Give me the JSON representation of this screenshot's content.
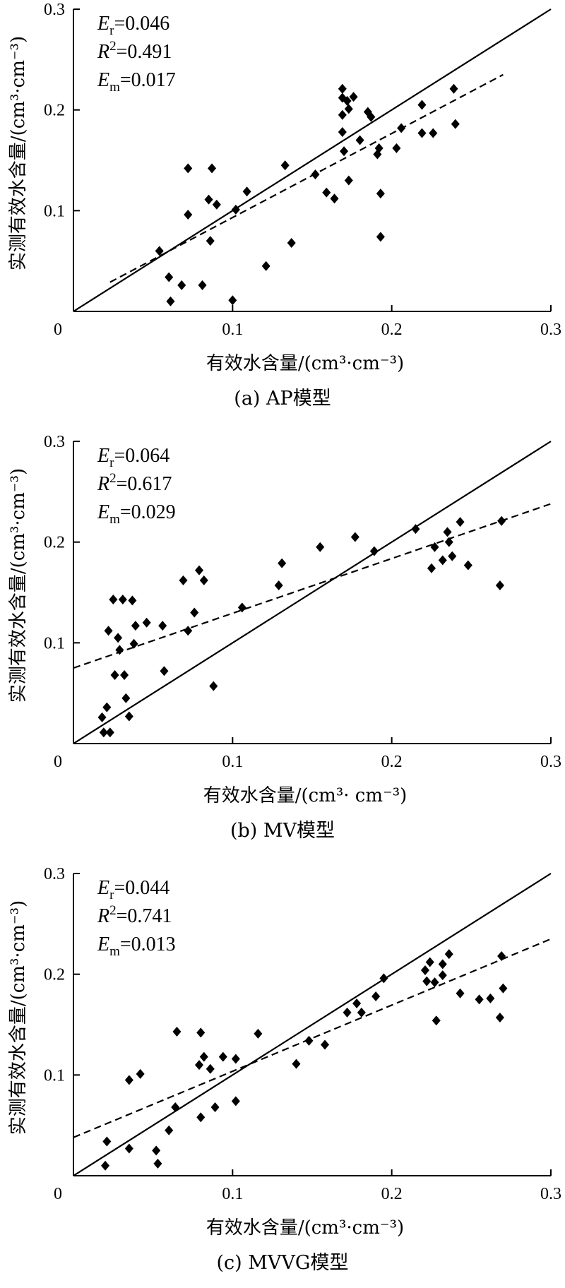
{
  "chart_data": [
    {
      "type": "scatter",
      "caption": "(a)  AP模型",
      "xlabel": "有效水含量/(cm³·cm⁻³)",
      "ylabel": "实测有效水含量/(cm³·cm⁻³)",
      "xlim": [
        0,
        0.3
      ],
      "ylim": [
        0,
        0.3
      ],
      "xticks": [
        "0",
        "0.1",
        "0.2",
        "0.3"
      ],
      "yticks": [
        "0.1",
        "0.2",
        "0.3"
      ],
      "stats": [
        {
          "sym": "E",
          "sub": "r",
          "sup": "",
          "value": "=0.046"
        },
        {
          "sym": "R",
          "sub": "",
          "sup": "2",
          "value": "=0.491"
        },
        {
          "sym": "E",
          "sub": "m",
          "sup": "",
          "value": "=0.017"
        }
      ],
      "identity_line": [
        [
          0,
          0
        ],
        [
          0.3,
          0.3
        ]
      ],
      "fit_line": [
        [
          0.023,
          0.029
        ],
        [
          0.27,
          0.235
        ]
      ],
      "points": [
        [
          0.054,
          0.06
        ],
        [
          0.06,
          0.034
        ],
        [
          0.061,
          0.01
        ],
        [
          0.068,
          0.026
        ],
        [
          0.072,
          0.096
        ],
        [
          0.072,
          0.142
        ],
        [
          0.081,
          0.026
        ],
        [
          0.085,
          0.111
        ],
        [
          0.086,
          0.07
        ],
        [
          0.087,
          0.142
        ],
        [
          0.09,
          0.106
        ],
        [
          0.1,
          0.011
        ],
        [
          0.102,
          0.101
        ],
        [
          0.109,
          0.119
        ],
        [
          0.121,
          0.045
        ],
        [
          0.133,
          0.145
        ],
        [
          0.137,
          0.068
        ],
        [
          0.152,
          0.136
        ],
        [
          0.159,
          0.118
        ],
        [
          0.164,
          0.112
        ],
        [
          0.169,
          0.221
        ],
        [
          0.169,
          0.212
        ],
        [
          0.169,
          0.195
        ],
        [
          0.169,
          0.178
        ],
        [
          0.17,
          0.159
        ],
        [
          0.172,
          0.209
        ],
        [
          0.173,
          0.201
        ],
        [
          0.173,
          0.13
        ],
        [
          0.176,
          0.213
        ],
        [
          0.18,
          0.17
        ],
        [
          0.185,
          0.198
        ],
        [
          0.187,
          0.193
        ],
        [
          0.191,
          0.156
        ],
        [
          0.192,
          0.162
        ],
        [
          0.193,
          0.117
        ],
        [
          0.193,
          0.074
        ],
        [
          0.203,
          0.162
        ],
        [
          0.206,
          0.182
        ],
        [
          0.219,
          0.205
        ],
        [
          0.219,
          0.177
        ],
        [
          0.226,
          0.177
        ],
        [
          0.239,
          0.221
        ],
        [
          0.24,
          0.186
        ]
      ]
    },
    {
      "type": "scatter",
      "caption": "(b)  MV模型",
      "xlabel": "有效水含量/(cm³· cm⁻³)",
      "ylabel": "实测有效水含量/(cm³·cm⁻³)",
      "xlim": [
        0,
        0.3
      ],
      "ylim": [
        0,
        0.3
      ],
      "xticks": [
        "0",
        "0.1",
        "0.2",
        "0.3"
      ],
      "yticks": [
        "0.1",
        "0.2",
        "0.3"
      ],
      "stats": [
        {
          "sym": "E",
          "sub": "r",
          "sup": "",
          "value": "=0.064"
        },
        {
          "sym": "R",
          "sub": "",
          "sup": "2",
          "value": "=0.617"
        },
        {
          "sym": "E",
          "sub": "m",
          "sup": "",
          "value": "=0.029"
        }
      ],
      "identity_line": [
        [
          0,
          0
        ],
        [
          0.3,
          0.3
        ]
      ],
      "fit_line": [
        [
          0,
          0.075
        ],
        [
          0.3,
          0.238
        ]
      ],
      "points": [
        [
          0.018,
          0.026
        ],
        [
          0.019,
          0.011
        ],
        [
          0.021,
          0.036
        ],
        [
          0.022,
          0.112
        ],
        [
          0.023,
          0.011
        ],
        [
          0.025,
          0.143
        ],
        [
          0.026,
          0.068
        ],
        [
          0.028,
          0.105
        ],
        [
          0.029,
          0.093
        ],
        [
          0.031,
          0.143
        ],
        [
          0.032,
          0.068
        ],
        [
          0.033,
          0.045
        ],
        [
          0.035,
          0.027
        ],
        [
          0.037,
          0.142
        ],
        [
          0.038,
          0.099
        ],
        [
          0.039,
          0.117
        ],
        [
          0.046,
          0.12
        ],
        [
          0.056,
          0.117
        ],
        [
          0.057,
          0.072
        ],
        [
          0.069,
          0.162
        ],
        [
          0.072,
          0.112
        ],
        [
          0.076,
          0.13
        ],
        [
          0.079,
          0.172
        ],
        [
          0.082,
          0.162
        ],
        [
          0.088,
          0.057
        ],
        [
          0.106,
          0.135
        ],
        [
          0.129,
          0.157
        ],
        [
          0.131,
          0.179
        ],
        [
          0.155,
          0.195
        ],
        [
          0.177,
          0.205
        ],
        [
          0.189,
          0.191
        ],
        [
          0.215,
          0.213
        ],
        [
          0.225,
          0.174
        ],
        [
          0.227,
          0.195
        ],
        [
          0.232,
          0.182
        ],
        [
          0.235,
          0.21
        ],
        [
          0.236,
          0.2
        ],
        [
          0.238,
          0.186
        ],
        [
          0.243,
          0.22
        ],
        [
          0.248,
          0.177
        ],
        [
          0.268,
          0.157
        ],
        [
          0.269,
          0.221
        ]
      ]
    },
    {
      "type": "scatter",
      "caption": "(c)  MVVG模型",
      "xlabel": "有效水含量/(cm³·cm⁻³)",
      "ylabel": "实测有效水含量/(cm³·cm⁻³)",
      "xlim": [
        0,
        0.3
      ],
      "ylim": [
        0,
        0.3
      ],
      "xticks": [
        "0",
        "0.1",
        "0.2",
        "0.3"
      ],
      "yticks": [
        "0.1",
        "0.2",
        "0.3"
      ],
      "stats": [
        {
          "sym": "E",
          "sub": "r",
          "sup": "",
          "value": "=0.044"
        },
        {
          "sym": "R",
          "sub": "",
          "sup": "2",
          "value": "=0.741"
        },
        {
          "sym": "E",
          "sub": "m",
          "sup": "",
          "value": "=0.013"
        }
      ],
      "identity_line": [
        [
          0,
          0
        ],
        [
          0.3,
          0.3
        ]
      ],
      "fit_line": [
        [
          0,
          0.038
        ],
        [
          0.3,
          0.235
        ]
      ],
      "points": [
        [
          0.02,
          0.01
        ],
        [
          0.021,
          0.034
        ],
        [
          0.035,
          0.027
        ],
        [
          0.035,
          0.095
        ],
        [
          0.042,
          0.101
        ],
        [
          0.052,
          0.025
        ],
        [
          0.053,
          0.012
        ],
        [
          0.06,
          0.045
        ],
        [
          0.064,
          0.068
        ],
        [
          0.065,
          0.143
        ],
        [
          0.079,
          0.11
        ],
        [
          0.08,
          0.058
        ],
        [
          0.08,
          0.142
        ],
        [
          0.082,
          0.118
        ],
        [
          0.086,
          0.106
        ],
        [
          0.089,
          0.068
        ],
        [
          0.094,
          0.118
        ],
        [
          0.102,
          0.116
        ],
        [
          0.102,
          0.074
        ],
        [
          0.116,
          0.141
        ],
        [
          0.14,
          0.111
        ],
        [
          0.148,
          0.134
        ],
        [
          0.158,
          0.13
        ],
        [
          0.172,
          0.162
        ],
        [
          0.178,
          0.171
        ],
        [
          0.181,
          0.162
        ],
        [
          0.19,
          0.178
        ],
        [
          0.195,
          0.196
        ],
        [
          0.221,
          0.204
        ],
        [
          0.222,
          0.193
        ],
        [
          0.224,
          0.212
        ],
        [
          0.227,
          0.192
        ],
        [
          0.228,
          0.154
        ],
        [
          0.232,
          0.21
        ],
        [
          0.232,
          0.199
        ],
        [
          0.236,
          0.22
        ],
        [
          0.243,
          0.181
        ],
        [
          0.255,
          0.175
        ],
        [
          0.262,
          0.176
        ],
        [
          0.268,
          0.157
        ],
        [
          0.269,
          0.218
        ],
        [
          0.27,
          0.186
        ]
      ]
    }
  ]
}
